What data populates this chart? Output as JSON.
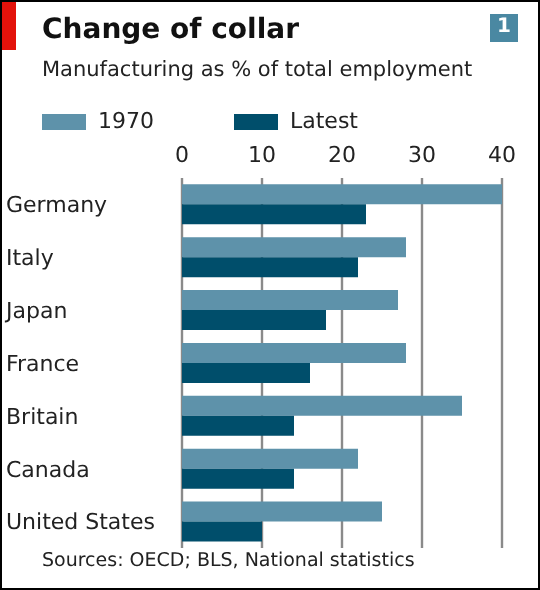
{
  "chart_data": {
    "type": "bar",
    "orientation": "horizontal",
    "title": "Change of collar",
    "subtitle": "Manufacturing as % of total employment",
    "categories": [
      "Germany",
      "Italy",
      "Japan",
      "France",
      "Britain",
      "Canada",
      "United States"
    ],
    "series": [
      {
        "name": "1970",
        "color": "#5e92aa",
        "values": [
          40,
          28,
          27,
          28,
          35,
          22,
          25
        ]
      },
      {
        "name": "Latest",
        "color": "#004e6b",
        "values": [
          23,
          22,
          18,
          16,
          14,
          14,
          10
        ]
      }
    ],
    "xlim": [
      0,
      40
    ],
    "xticks": [
      0,
      10,
      20,
      30,
      40
    ],
    "grid": "x",
    "legend": "top left",
    "annotations": [
      "1",
      "Sources: OECD; BLS, National statistics"
    ]
  }
}
